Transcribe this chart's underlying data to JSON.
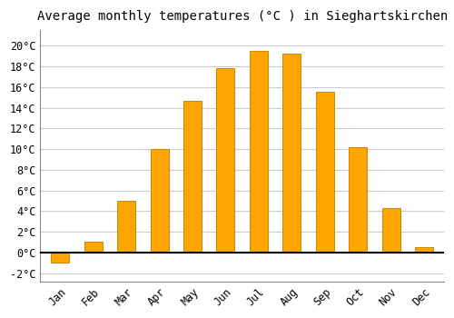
{
  "title": "Average monthly temperatures (°C ) in Sieghartskirchen",
  "months": [
    "Jan",
    "Feb",
    "Mar",
    "Apr",
    "May",
    "Jun",
    "Jul",
    "Aug",
    "Sep",
    "Oct",
    "Nov",
    "Dec"
  ],
  "values": [
    -1.0,
    1.0,
    5.0,
    10.0,
    14.7,
    17.8,
    19.5,
    19.2,
    15.5,
    10.2,
    4.3,
    0.5
  ],
  "bar_color": "#FFA500",
  "bar_edge_color": "#CC8800",
  "background_color": "#FFFFFF",
  "plot_bg_color": "#FFFFFF",
  "grid_color": "#CCCCCC",
  "ylim": [
    -2.8,
    21.5
  ],
  "yticks": [
    -2,
    0,
    2,
    4,
    6,
    8,
    10,
    12,
    14,
    16,
    18,
    20
  ],
  "title_fontsize": 10,
  "tick_fontsize": 8.5,
  "font_family": "monospace",
  "bar_width": 0.55
}
